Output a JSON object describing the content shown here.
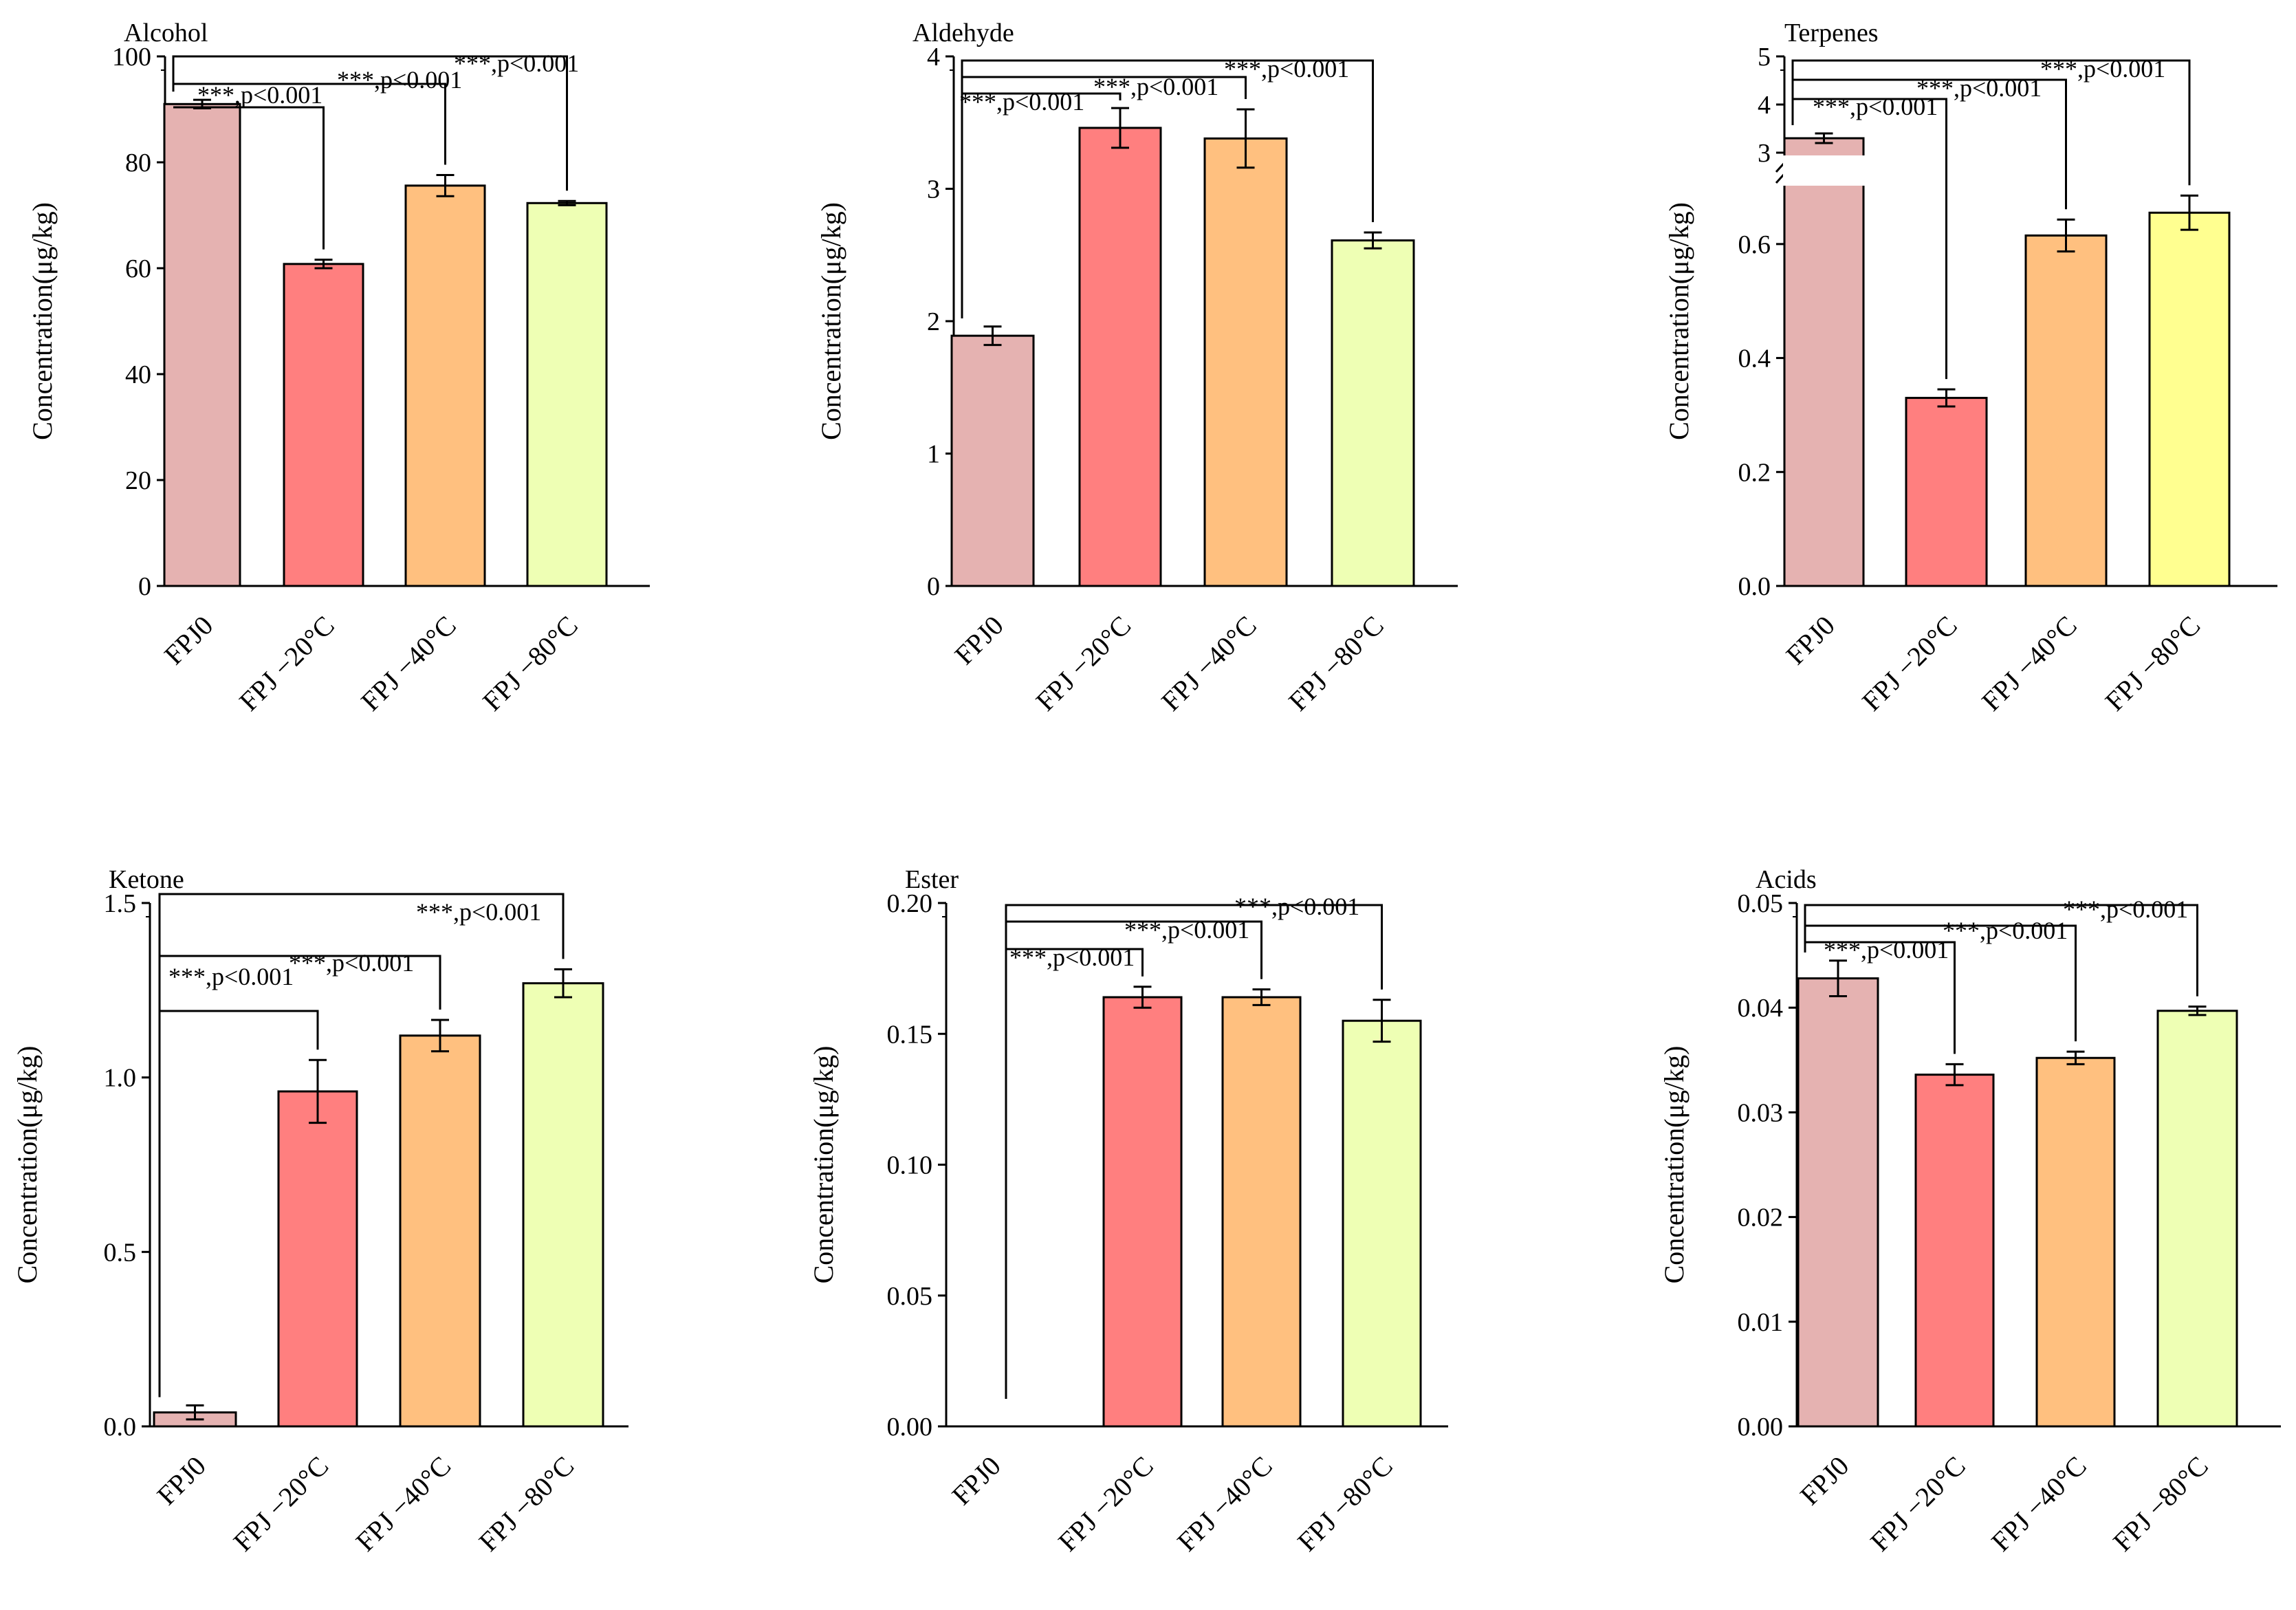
{
  "categories": [
    "FPJ0",
    "FPJ −20°C",
    "FPJ −40°C",
    "FPJ −80°C"
  ],
  "ylabel": "Concentration(μg/kg)",
  "chart_data": [
    {
      "type": "bar",
      "title": "Alcohol",
      "categories": [
        "FPJ0",
        "FPJ −20°C",
        "FPJ −40°C",
        "FPJ −80°C"
      ],
      "ylabel": "Concentration(μg/kg)",
      "ylim": [
        0,
        100
      ],
      "yticks": [
        "0",
        "20",
        "40",
        "60",
        "80",
        "100"
      ],
      "values": [
        91.0,
        60.8,
        75.6,
        72.3
      ],
      "errors": [
        0.8,
        0.8,
        2.0,
        0.4
      ],
      "colors": [
        "#e5b2b1",
        "#ff7f7f",
        "#ffc07f",
        "#eeffb4"
      ],
      "significance": [
        {
          "from": "FPJ0",
          "to": "FPJ −20°C",
          "label": "***,p<0.001"
        },
        {
          "from": "FPJ0",
          "to": "FPJ −40°C",
          "label": "***,p<0.001"
        },
        {
          "from": "FPJ0",
          "to": "FPJ −80°C",
          "label": "***,p<0.001"
        }
      ]
    },
    {
      "type": "bar",
      "title": "Aldehyde",
      "categories": [
        "FPJ0",
        "FPJ −20°C",
        "FPJ −40°C",
        "FPJ −80°C"
      ],
      "ylabel": "Concentration(μg/kg)",
      "ylim": [
        0,
        4
      ],
      "yticks": [
        "0",
        "1",
        "2",
        "3",
        "4"
      ],
      "values": [
        1.89,
        3.46,
        3.38,
        2.61
      ],
      "errors": [
        0.07,
        0.15,
        0.22,
        0.06
      ],
      "colors": [
        "#e5b2b1",
        "#ff7f7f",
        "#ffc07f",
        "#eeffb4"
      ],
      "significance": [
        {
          "from": "FPJ0",
          "to": "FPJ −20°C",
          "label": "***,p<0.001"
        },
        {
          "from": "FPJ0",
          "to": "FPJ −40°C",
          "label": "***,p<0.001"
        },
        {
          "from": "FPJ0",
          "to": "FPJ −80°C",
          "label": "***,p<0.001"
        }
      ]
    },
    {
      "type": "bar",
      "title": "Terpenes",
      "categories": [
        "FPJ0",
        "FPJ −20°C",
        "FPJ −40°C",
        "FPJ −80°C"
      ],
      "ylabel": "Concentration(μg/kg)",
      "broken_axis": {
        "lower": [
          0,
          0.7
        ],
        "upper": [
          3,
          5
        ]
      },
      "yticks_lower": [
        "0.0",
        "0.2",
        "0.4",
        "0.6"
      ],
      "yticks_upper": [
        "3",
        "4",
        "5"
      ],
      "values": [
        3.3,
        0.33,
        0.615,
        0.655
      ],
      "errors": [
        0.1,
        0.015,
        0.028,
        0.03
      ],
      "colors": [
        "#e5b2b1",
        "#ff7f7f",
        "#ffc07f",
        "#ffff90"
      ],
      "significance": [
        {
          "from": "FPJ0",
          "to": "FPJ −20°C",
          "label": "***,p<0.001"
        },
        {
          "from": "FPJ0",
          "to": "FPJ −40°C",
          "label": "***,p<0.001"
        },
        {
          "from": "FPJ0",
          "to": "FPJ −80°C",
          "label": "***,p<0.001"
        }
      ]
    },
    {
      "type": "bar",
      "title": "Ketone",
      "categories": [
        "FPJ0",
        "FPJ −20°C",
        "FPJ −40°C",
        "FPJ −80°C"
      ],
      "ylabel": "Concentration(μg/kg)",
      "ylim": [
        0,
        1.5
      ],
      "yticks": [
        "0.0",
        "0.5",
        "1.0",
        "1.5"
      ],
      "values": [
        0.04,
        0.96,
        1.12,
        1.27
      ],
      "errors": [
        0.02,
        0.09,
        0.045,
        0.04
      ],
      "colors": [
        "#e5b2b1",
        "#ff7f7f",
        "#ffc07f",
        "#eeffb4"
      ],
      "significance": [
        {
          "from": "FPJ0",
          "to": "FPJ −20°C",
          "label": "***,p<0.001"
        },
        {
          "from": "FPJ0",
          "to": "FPJ −40°C",
          "label": "***,p<0.001"
        },
        {
          "from": "FPJ0",
          "to": "FPJ −80°C",
          "label": "***,p<0.001"
        }
      ]
    },
    {
      "type": "bar",
      "title": "Ester",
      "categories": [
        "FPJ0",
        "FPJ −20°C",
        "FPJ −40°C",
        "FPJ −80°C"
      ],
      "ylabel": "Concentration(μg/kg)",
      "ylim": [
        0,
        0.2
      ],
      "yticks": [
        "0.00",
        "0.05",
        "0.10",
        "0.15",
        "0.20"
      ],
      "values": [
        0,
        0.164,
        0.164,
        0.155
      ],
      "errors": [
        0,
        0.004,
        0.003,
        0.008
      ],
      "colors": [
        "#e5b2b1",
        "#ff7f7f",
        "#ffc07f",
        "#eeffb4"
      ],
      "significance": [
        {
          "from": "FPJ0",
          "to": "FPJ −20°C",
          "label": "***,p<0.001"
        },
        {
          "from": "FPJ0",
          "to": "FPJ −40°C",
          "label": "***,p<0.001"
        },
        {
          "from": "FPJ0",
          "to": "FPJ −80°C",
          "label": "***,p<0.001"
        }
      ]
    },
    {
      "type": "bar",
      "title": "Acids",
      "categories": [
        "FPJ0",
        "FPJ −20°C",
        "FPJ −40°C",
        "FPJ −80°C"
      ],
      "ylabel": "Concentration(μg/kg)",
      "ylim": [
        0,
        0.05
      ],
      "yticks": [
        "0.00",
        "0.01",
        "0.02",
        "0.03",
        "0.04",
        "0.05"
      ],
      "values": [
        0.0428,
        0.0336,
        0.0352,
        0.0397
      ],
      "errors": [
        0.0017,
        0.001,
        0.0006,
        0.0004
      ],
      "colors": [
        "#e5b2b1",
        "#ff7f7f",
        "#ffc07f",
        "#eeffb4"
      ],
      "significance": [
        {
          "from": "FPJ0",
          "to": "FPJ −20°C",
          "label": "***,p<0.001"
        },
        {
          "from": "FPJ0",
          "to": "FPJ −40°C",
          "label": "***,p<0.001"
        },
        {
          "from": "FPJ0",
          "to": "FPJ −80°C",
          "label": "***,p<0.001"
        }
      ]
    }
  ]
}
